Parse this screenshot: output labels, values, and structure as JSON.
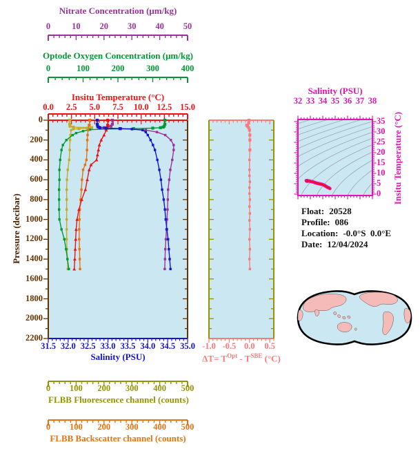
{
  "colors": {
    "purple": "#993399",
    "green": "#009933",
    "red": "#ee1111",
    "blue": "#1515d0",
    "olive_axis": "#949400",
    "olive_curve": "#c2ad2a",
    "orange": "#e8720e",
    "pink": "#f97a7a",
    "magenta": "#e613b4",
    "brown": "#663300",
    "plot_bg": "#cbe7f2",
    "map_land": "#f5bbb8",
    "map_outline": "#000000",
    "isopycnal_gray": "#9aa8ad"
  },
  "axes": {
    "nitrate": {
      "title": "Nitrate Concentration (μm/kg)",
      "ticks": [
        "0",
        "10",
        "20",
        "30",
        "40",
        "50"
      ]
    },
    "oxygen": {
      "title": "Optode Oxygen Concentration (μm/kg)",
      "ticks": [
        "0",
        "100",
        "200",
        "300",
        "400"
      ]
    },
    "temperature": {
      "title": "Insitu Temperature (°C)",
      "ticks": [
        "0.0",
        "2.5",
        "5.0",
        "7.5",
        "10.0",
        "12.5",
        "15.0"
      ]
    },
    "pressure": {
      "title": "Pressure (decibar)",
      "ticks": [
        "0",
        "200",
        "400",
        "600",
        "800",
        "1000",
        "1200",
        "1400",
        "1600",
        "1800",
        "2000",
        "2200"
      ]
    },
    "salinity": {
      "title": "Salinity (PSU)",
      "ticks": [
        "31.5",
        "32.0",
        "32.5",
        "33.0",
        "33.5",
        "34.0",
        "34.5",
        "35.0"
      ]
    },
    "fluorescence": {
      "title": "FLBB Fluorescence channel (counts)",
      "ticks": [
        "0",
        "100",
        "200",
        "300",
        "400",
        "500"
      ]
    },
    "backscatter": {
      "title": "FLBB Backscatter channel (counts)",
      "ticks": [
        "0",
        "100",
        "200",
        "300",
        "400",
        "500"
      ]
    },
    "delta_t": {
      "title_parts": [
        "ΔT= T",
        "Opt",
        " - T",
        "SBE",
        " (°C)"
      ],
      "ticks": [
        "-1.0",
        "-0.5",
        "0.0",
        "0.5"
      ]
    },
    "ts_salinity": {
      "title": "Salinity (PSU)",
      "ticks": [
        "32",
        "33",
        "34",
        "35",
        "36",
        "37",
        "38"
      ]
    },
    "ts_temperature": {
      "title": "Insitu Temperature (°C)",
      "ticks": [
        "0",
        "5",
        "10",
        "15",
        "20",
        "25",
        "30",
        "35"
      ]
    }
  },
  "info": {
    "lines": [
      {
        "label": "Float:",
        "value": "20528"
      },
      {
        "label": "Profile:",
        "value": "086"
      },
      {
        "label": "Location:",
        "value": "-0.0°S  0.0°E"
      },
      {
        "label": "Date:",
        "value": "12/04/2024"
      }
    ]
  },
  "chart_data": [
    {
      "type": "line",
      "name": "profile-plot",
      "ylabel": "Pressure (decibar)",
      "ylim": [
        0,
        2200
      ],
      "grid": false,
      "series": [
        {
          "name": "FLBB Fluorescence channel",
          "axis_label": "FLBB Fluorescence channel (counts)",
          "xlim": [
            0,
            500
          ],
          "color_key": "olive_curve",
          "marker": "square",
          "pressure": [
            0,
            40,
            60,
            70,
            75,
            80,
            85,
            90,
            100,
            150,
            200,
            300,
            400,
            500,
            600,
            700,
            800,
            900,
            1000,
            1100,
            1200,
            1300,
            1400,
            1500
          ],
          "values": [
            77,
            77,
            78,
            90,
            156,
            140,
            110,
            90,
            82,
            80,
            78,
            77,
            75,
            70,
            67,
            66,
            66,
            66,
            66,
            66,
            66,
            67,
            69,
            70
          ]
        },
        {
          "name": "Optode Oxygen Concentration",
          "axis_label": "Optode Oxygen Concentration (μm/kg)",
          "xlim": [
            0,
            400
          ],
          "color_key": "green",
          "marker": "square",
          "pressure": [
            0,
            40,
            60,
            70,
            75,
            80,
            85,
            90,
            95,
            110,
            130,
            150,
            200,
            250,
            300,
            400,
            500,
            600,
            700,
            800,
            900,
            1000,
            1100,
            1200,
            1300,
            1400,
            1500
          ],
          "values": [
            335,
            335,
            333,
            330,
            322,
            300,
            245,
            165,
            120,
            100,
            80,
            70,
            52,
            42,
            38,
            34,
            32,
            32,
            31,
            31,
            31,
            32,
            38,
            46,
            51,
            55,
            59
          ]
        },
        {
          "name": "FLBB Backscatter channel",
          "axis_label": "FLBB Backscatter channel (counts)",
          "xlim": [
            0,
            500
          ],
          "color_key": "orange",
          "marker": "square",
          "pressure": [
            0,
            50,
            100,
            150,
            200,
            300,
            400,
            450,
            500,
            600,
            700,
            800,
            900,
            1000,
            1100,
            1200,
            1300,
            1400,
            1500
          ],
          "values": [
            149,
            147,
            143,
            141,
            140,
            139,
            137,
            132,
            125,
            121,
            119,
            116,
            113,
            112,
            111,
            111,
            112,
            113,
            114
          ]
        },
        {
          "name": "Nitrate Concentration",
          "axis_label": "Nitrate Concentration (μm/kg)",
          "xlim": [
            0,
            50
          ],
          "color_key": "purple",
          "marker": "square",
          "pressure": [
            0,
            40,
            60,
            75,
            80,
            85,
            90,
            100,
            120,
            150,
            200,
            250,
            300,
            400,
            500,
            600,
            700,
            800,
            900,
            1000,
            1100,
            1200,
            1300,
            1400,
            1500
          ],
          "values": [
            23.0,
            23.0,
            22.5,
            20.0,
            21.0,
            26.0,
            30.0,
            35.0,
            39.0,
            42.0,
            44.0,
            45.0,
            45.0,
            44.5,
            43.8,
            43.4,
            43.0,
            42.9,
            42.8,
            42.6,
            42.4,
            42.2,
            42.0,
            41.9,
            41.8
          ]
        },
        {
          "name": "Insitu Temperature",
          "axis_label": "Insitu Temperature (°C)",
          "xlim": [
            0,
            15
          ],
          "color_key": "red",
          "marker": "triangle",
          "pressure": [
            0,
            50,
            80,
            100,
            150,
            200,
            250,
            300,
            350,
            400,
            450,
            500,
            600,
            700,
            800,
            900,
            1000,
            1100,
            1200,
            1300,
            1400,
            1500
          ],
          "values": [
            6.4,
            6.4,
            6.35,
            6.25,
            6.0,
            5.7,
            5.5,
            5.4,
            5.3,
            5.2,
            4.6,
            4.4,
            4.2,
            4.0,
            3.6,
            3.3,
            3.1,
            3.0,
            2.95,
            2.9,
            2.85,
            2.8
          ]
        },
        {
          "name": "Salinity",
          "axis_label": "Salinity (PSU)",
          "xlim": [
            31.5,
            35.0
          ],
          "color_key": "blue",
          "marker": "square",
          "pressure": [
            0,
            40,
            60,
            70,
            75,
            80,
            85,
            90,
            100,
            120,
            150,
            200,
            250,
            300,
            400,
            500,
            600,
            700,
            800,
            900,
            1000,
            1100,
            1200,
            1300,
            1400,
            1500
          ],
          "values": [
            32.73,
            32.73,
            32.74,
            32.76,
            32.8,
            32.95,
            33.3,
            33.6,
            33.87,
            33.95,
            34.0,
            34.07,
            34.13,
            34.18,
            34.24,
            34.29,
            34.33,
            34.36,
            34.4,
            34.43,
            34.45,
            34.48,
            34.51,
            34.53,
            34.55,
            34.57
          ]
        }
      ]
    },
    {
      "type": "line",
      "name": "temperature-difference-plot",
      "xlabel": "ΔT= T^Opt - T^SBE (°C)",
      "xlim": [
        -1.0,
        0.6
      ],
      "ylabel": "Pressure (decibar)",
      "ylim": [
        0,
        2200
      ],
      "color_key": "pink",
      "series": [
        {
          "name": "delta-T",
          "marker": "square",
          "pressure": [
            0,
            30,
            50,
            60,
            75,
            100,
            150,
            200,
            300,
            400,
            500,
            560,
            620,
            680,
            740,
            800,
            870,
            940,
            1010,
            1100,
            1200,
            1300,
            1400,
            1500
          ],
          "values": [
            -0.01,
            -0.02,
            -0.07,
            -0.05,
            -0.02,
            0.0,
            0.01,
            0.01,
            0.01,
            0.0,
            0.0,
            0.0,
            0.01,
            0.0,
            0.0,
            0.01,
            0.0,
            0.01,
            0.0,
            0.01,
            0.0,
            0.01,
            0.0,
            0.01
          ]
        }
      ]
    },
    {
      "type": "line",
      "name": "ts-diagram",
      "xlabel": "Salinity (PSU)",
      "xlim": [
        32,
        38
      ],
      "ylabel": "Insitu Temperature (°C)",
      "ylim": [
        0,
        35
      ],
      "isopycnal_levels": [
        18,
        19,
        20,
        21,
        22,
        23,
        24,
        25,
        26,
        27,
        28,
        29,
        30
      ],
      "series": [
        {
          "name": "T-S curve",
          "salinity": [
            32.67,
            32.7,
            32.76,
            32.73,
            32.9,
            33.05,
            33.2,
            33.5,
            33.8,
            34.0,
            34.2,
            34.35,
            34.5,
            34.57
          ],
          "temperature": [
            6.5,
            6.3,
            6.6,
            6.2,
            6.35,
            6.1,
            5.9,
            5.3,
            4.9,
            4.6,
            4.0,
            3.4,
            3.0,
            2.7
          ]
        }
      ]
    }
  ],
  "map": {
    "description": "World map, Pacific-centered oval projection",
    "regions": [
      "eurasia",
      "india",
      "southeast-asia-islands",
      "australia",
      "new-zealand",
      "north-america",
      "greenland",
      "south-america",
      "africa-east-edge",
      "africa-west-edge"
    ]
  }
}
